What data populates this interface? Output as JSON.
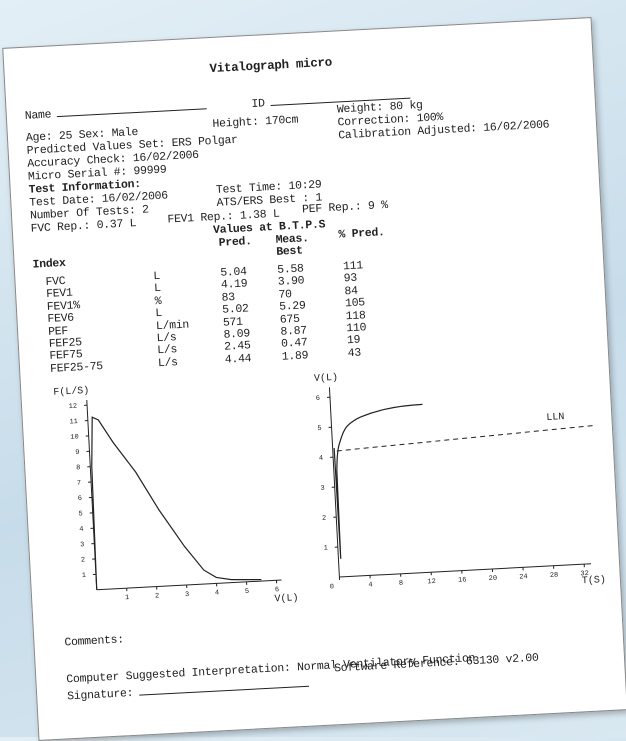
{
  "header": {
    "title": "Vitalograph micro"
  },
  "patient": {
    "name_label": "Name",
    "id_label": "ID",
    "age_sex": "Age: 25 Sex: Male",
    "height": "Height: 170cm",
    "weight": "Weight: 80 kg",
    "predicted": "Predicted Values Set: ERS Polgar",
    "correction": "Correction: 100%",
    "accuracy": "Accuracy Check: 16/02/2006",
    "calibration": "Calibration Adjusted: 16/02/2006",
    "serial": "Micro Serial #: 99999"
  },
  "test": {
    "heading": "Test Information:",
    "date": "Test Date: 16/02/2006",
    "time": "Test Time: 10:29",
    "number": "Number Of Tests: 2",
    "ats": "ATS/ERS Best : 1",
    "fvc_rep": "FVC Rep.: 0.37 L",
    "fev1_rep": "FEV1 Rep.: 1.38 L",
    "pef_rep": "PEF Rep.: 9 %"
  },
  "table": {
    "caption": "Values at B.T.P.S",
    "index_header": "Index",
    "pred_header": "Pred.",
    "meas_header": "Meas.",
    "best_header": "Best",
    "pct_header": "% Pred.",
    "rows": [
      [
        "FVC",
        "L",
        "5.04",
        "5.58",
        "111"
      ],
      [
        "FEV1",
        "L",
        "4.19",
        "3.90",
        "93"
      ],
      [
        "FEV1%",
        "%",
        "83",
        "70",
        "84"
      ],
      [
        "FEV6",
        "L",
        "5.02",
        "5.29",
        "105"
      ],
      [
        "PEF",
        "L/min",
        "571",
        "675",
        "118"
      ],
      [
        "FEF25",
        "L/s",
        "8.09",
        "8.87",
        "110"
      ],
      [
        "FEF75",
        "L/s",
        "2.45",
        "0.47",
        "19"
      ],
      [
        "FEF25-75",
        "L/s",
        "4.44",
        "1.89",
        "43"
      ]
    ]
  },
  "flow_volume_chart": {
    "y_label": "F(L/S)",
    "x_label": "V(L)",
    "yticks": [
      1,
      2,
      3,
      4,
      5,
      6,
      7,
      8,
      9,
      10,
      11,
      12
    ],
    "xticks": [
      1,
      2,
      3,
      4,
      5,
      6
    ]
  },
  "volume_time_chart": {
    "y_label": "V(L)",
    "x_label": "T(S)",
    "lln_label": "LLN",
    "yticks": [
      1,
      2,
      3,
      4,
      5,
      6
    ],
    "xticks": [
      0,
      4,
      8,
      12,
      16,
      20,
      24,
      28,
      32
    ]
  },
  "footer": {
    "comments": "Comments:",
    "interpretation": "Computer Suggested Interpretation: Normal Ventilatory Function",
    "software": "Software Reference: 63130 v2.00",
    "signature": "Signature:"
  }
}
